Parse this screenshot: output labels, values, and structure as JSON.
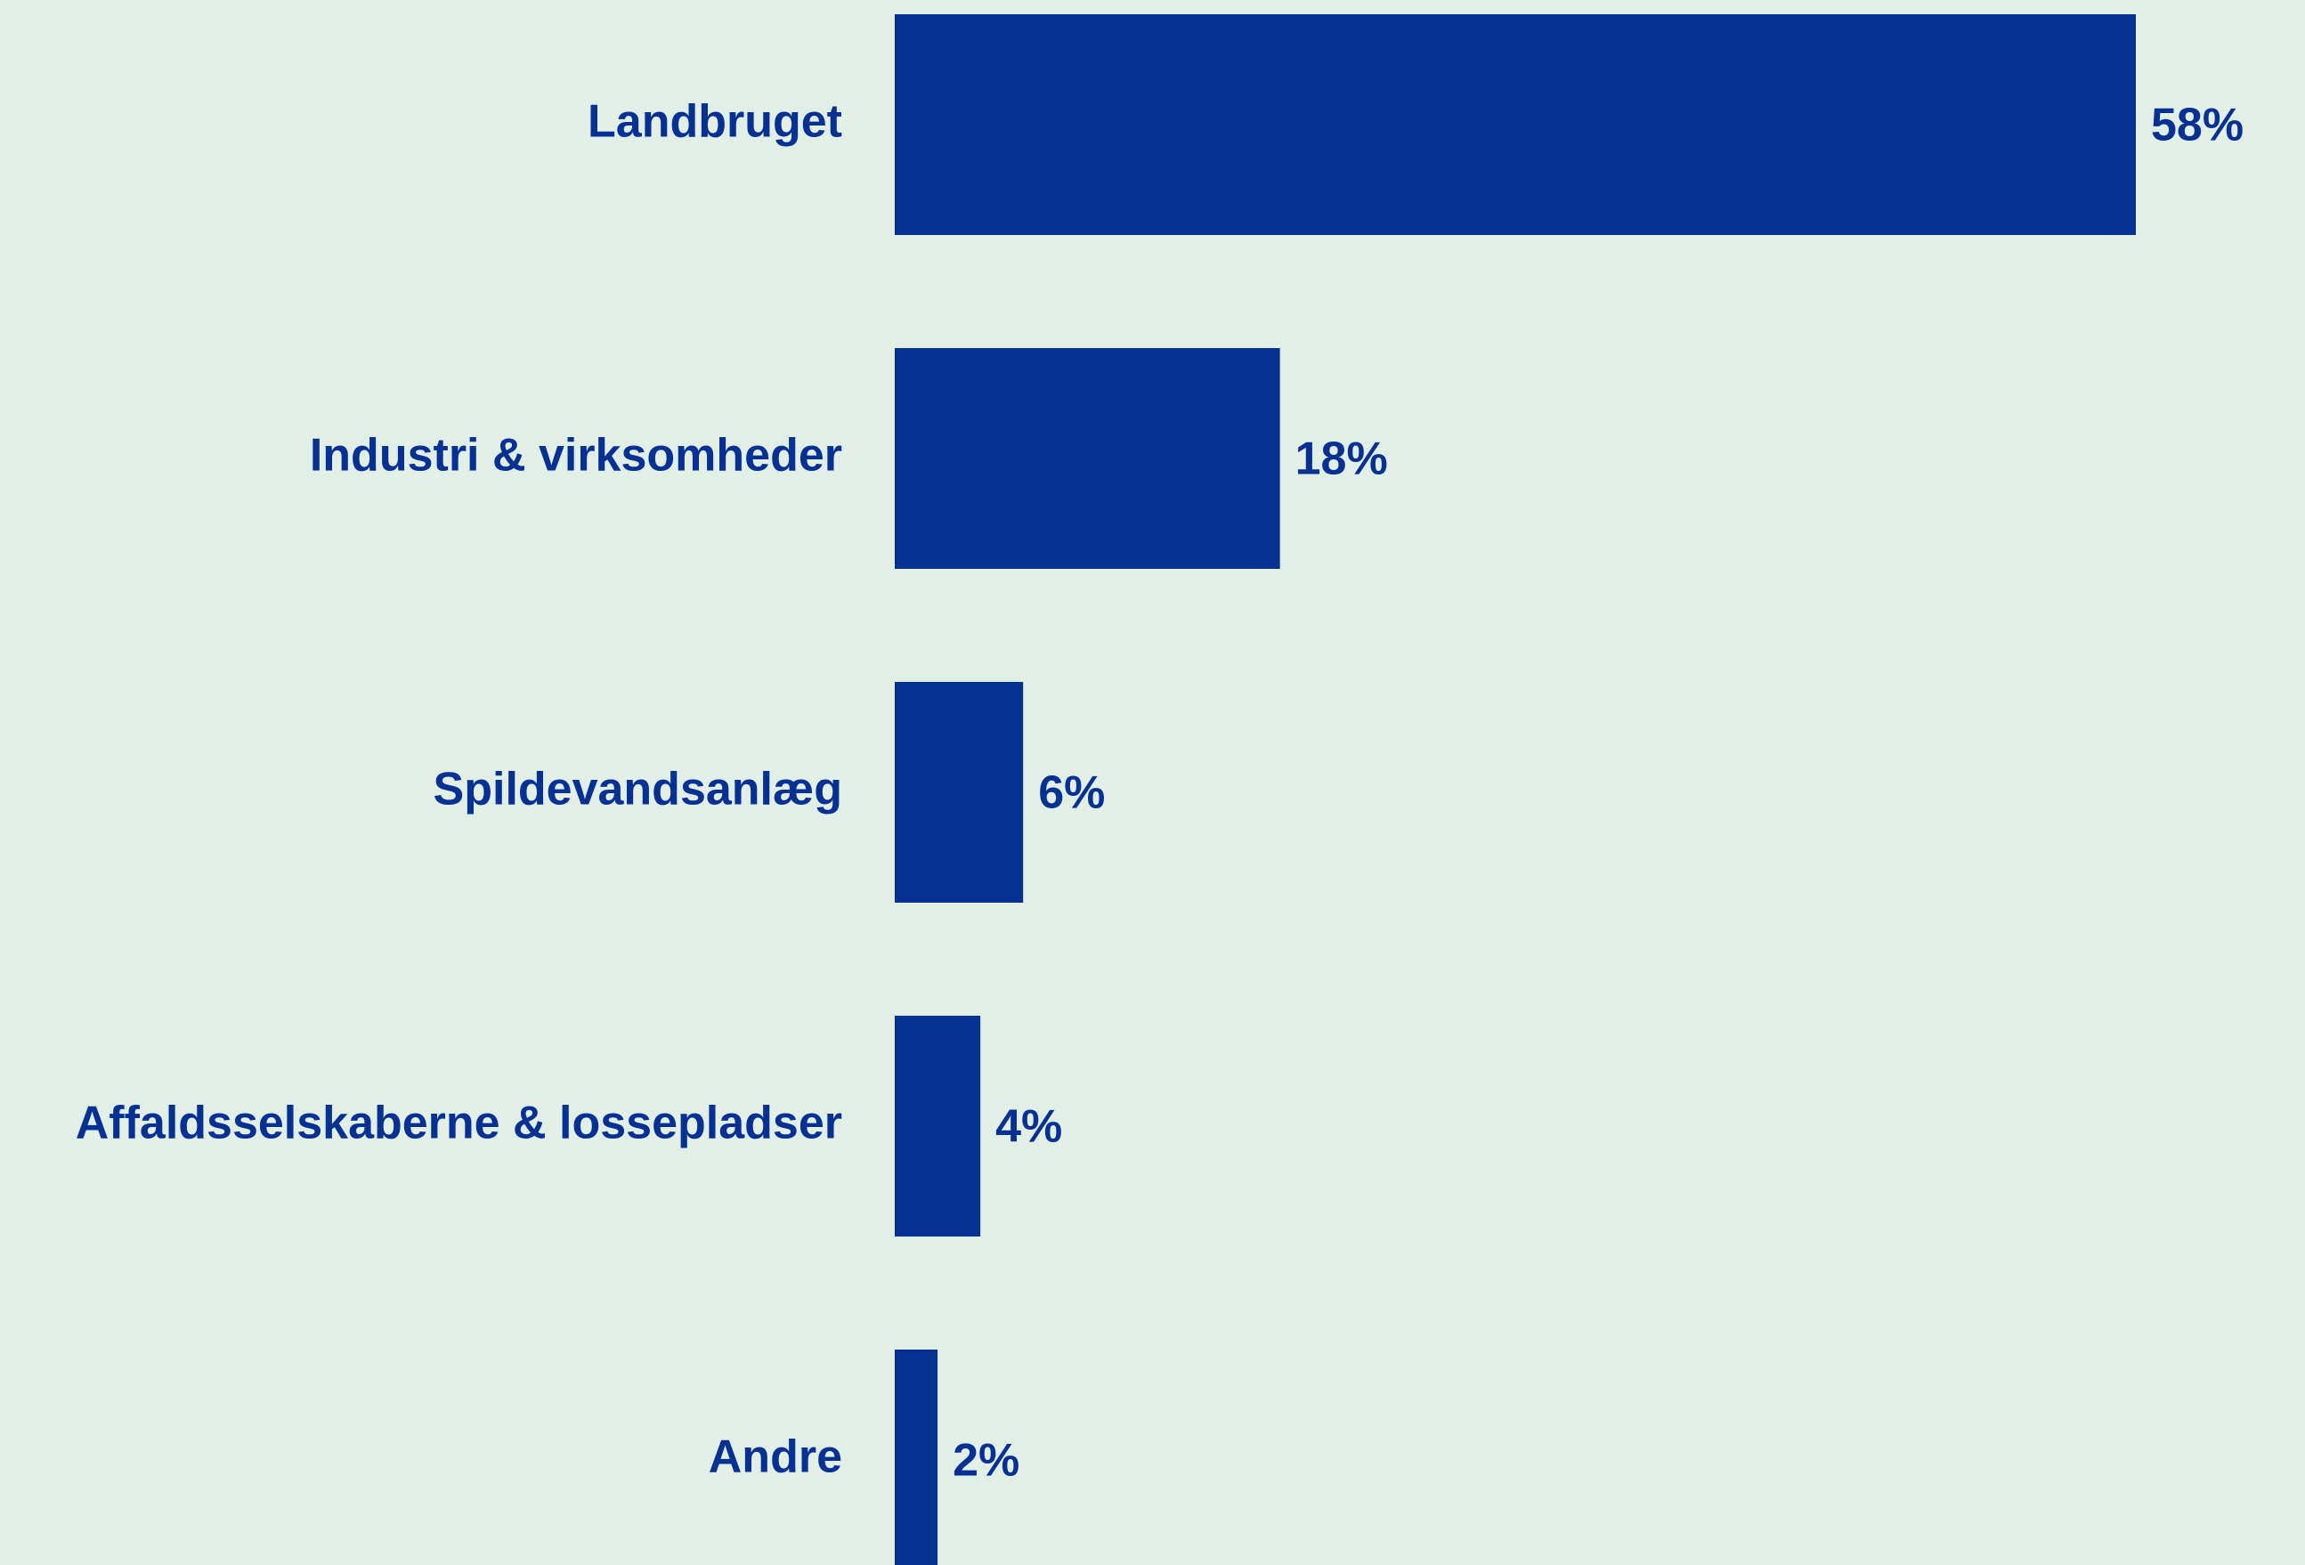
{
  "chart_data": {
    "type": "bar",
    "orientation": "horizontal",
    "categories": [
      "Landbruget",
      "Industri & virksomheder",
      "Spildevandsanlæg",
      "Affaldsselskaberne & lossepladser",
      "Andre"
    ],
    "values": [
      58,
      18,
      6,
      4,
      2
    ],
    "value_labels": [
      "58%",
      "18%",
      "6%",
      "4%",
      "2%"
    ],
    "color": "#063192"
  }
}
